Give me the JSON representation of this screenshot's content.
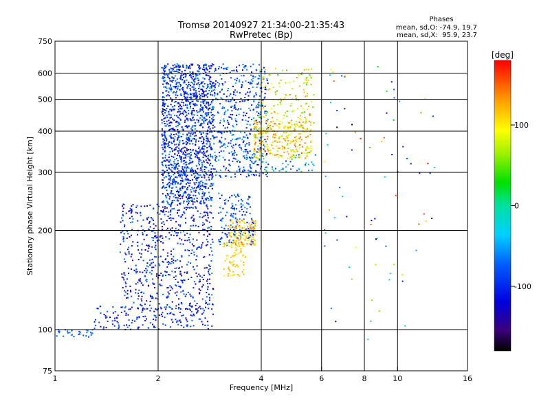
{
  "chart_data": {
    "type": "scatter",
    "title": "Tromsø 20140927 21:34:00-21:35:43",
    "subtitle": "RwPretec (Bp)",
    "xlabel": "Frequency [MHz]",
    "ylabel": "Stationary phase Virtual Height [km]",
    "x_scale": "log",
    "y_scale": "log",
    "xlim": [
      1,
      16
    ],
    "ylim": [
      75,
      750
    ],
    "x_ticks": [
      1,
      2,
      4,
      6,
      8,
      10,
      16
    ],
    "y_ticks": [
      75,
      100,
      200,
      300,
      400,
      500,
      600,
      750
    ],
    "x_gridlines": [
      2,
      4,
      6,
      8,
      10
    ],
    "y_gridlines": [
      100,
      200,
      300,
      400,
      500,
      600
    ],
    "grid": true,
    "phases_box": {
      "heading": "Phases",
      "line_o": "mean, sd,O: -74.9, 19.7",
      "line_x": "mean, sd,X:  95.9, 23.7"
    },
    "colorbar": {
      "label": "[deg]",
      "range": [
        -180,
        180
      ],
      "ticks": [
        100,
        0,
        -100
      ],
      "colormap": "rainbow"
    },
    "point_clusters": [
      {
        "x_range": [
          1.0,
          1.3
        ],
        "y_range": [
          95,
          100
        ],
        "count": 30,
        "phase_range": [
          -90,
          -60
        ]
      },
      {
        "x_range": [
          1.3,
          2.9
        ],
        "y_range": [
          100,
          118
        ],
        "count": 160,
        "phase_range": [
          -130,
          -70
        ]
      },
      {
        "x_range": [
          1.55,
          2.9
        ],
        "y_range": [
          115,
          240
        ],
        "count": 650,
        "phase_range": [
          -150,
          -60
        ]
      },
      {
        "x_range": [
          2.05,
          2.9
        ],
        "y_range": [
          240,
          640
        ],
        "count": 1400,
        "phase_range": [
          -140,
          -50
        ]
      },
      {
        "x_range": [
          2.9,
          4.2
        ],
        "y_range": [
          290,
          640
        ],
        "count": 500,
        "phase_range": [
          -130,
          -40
        ]
      },
      {
        "x_range": [
          3.0,
          3.8
        ],
        "y_range": [
          180,
          260
        ],
        "count": 160,
        "phase_range": [
          -120,
          -50
        ]
      },
      {
        "x_range": [
          3.2,
          3.85
        ],
        "y_range": [
          180,
          215
        ],
        "count": 120,
        "phase_range": [
          90,
          140
        ]
      },
      {
        "x_range": [
          3.1,
          3.6
        ],
        "y_range": [
          145,
          185
        ],
        "count": 80,
        "phase_range": [
          95,
          125
        ]
      },
      {
        "x_range": [
          3.8,
          5.6
        ],
        "y_range": [
          330,
          430
        ],
        "count": 320,
        "phase_range": [
          60,
          150
        ]
      },
      {
        "x_range": [
          3.9,
          5.7
        ],
        "y_range": [
          420,
          620
        ],
        "count": 140,
        "phase_range": [
          40,
          140
        ]
      },
      {
        "x_range": [
          4.0,
          5.8
        ],
        "y_range": [
          300,
          340
        ],
        "count": 40,
        "phase_range": [
          -100,
          20
        ]
      },
      {
        "x_range": [
          6.0,
          13.0
        ],
        "y_range": [
          90,
          640
        ],
        "count": 80,
        "phase_range": [
          -180,
          180
        ]
      }
    ]
  }
}
